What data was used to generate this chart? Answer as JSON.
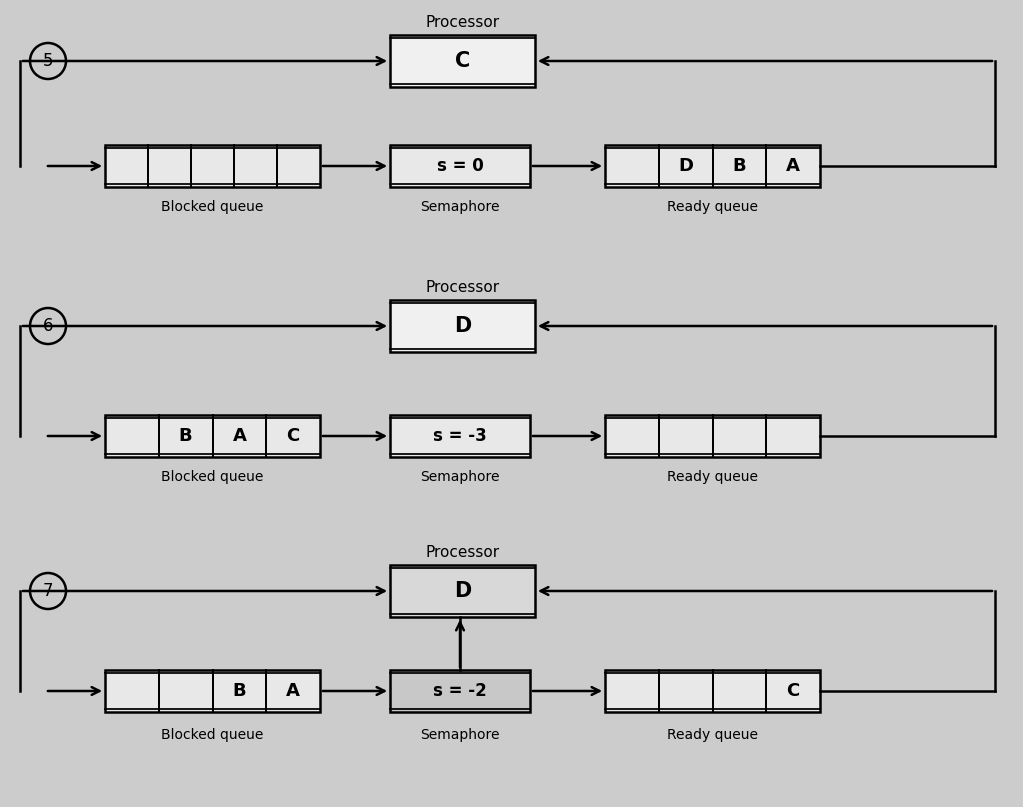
{
  "bg_color": "#cccccc",
  "diagrams": [
    {
      "number": "5",
      "processor_label": "Processor",
      "processor_content": "C",
      "processor_bg": "#f0f0f0",
      "semaphore_value": "s = 0",
      "semaphore_bg": "#e8e8e8",
      "blocked_queue_cells": 5,
      "blocked_items": [],
      "ready_queue_cells": 4,
      "ready_items": [
        "D",
        "B",
        "A"
      ],
      "blocked_label": "Blocked queue",
      "semaphore_label": "Semaphore",
      "ready_label": "Ready queue",
      "has_extra_arrow": false
    },
    {
      "number": "6",
      "processor_label": "Processor",
      "processor_content": "D",
      "processor_bg": "#f0f0f0",
      "semaphore_value": "s = -3",
      "semaphore_bg": "#e8e8e8",
      "blocked_queue_cells": 4,
      "blocked_items": [
        "B",
        "A",
        "C"
      ],
      "ready_queue_cells": 4,
      "ready_items": [],
      "blocked_label": "Blocked queue",
      "semaphore_label": "Semaphore",
      "ready_label": "Ready queue",
      "has_extra_arrow": false
    },
    {
      "number": "7",
      "processor_label": "Processor",
      "processor_content": "D",
      "processor_bg": "#d8d8d8",
      "semaphore_value": "s = -2",
      "semaphore_bg": "#c8c8c8",
      "blocked_queue_cells": 4,
      "blocked_items": [
        "B",
        "A"
      ],
      "ready_queue_cells": 4,
      "ready_items": [
        "C"
      ],
      "blocked_label": "Blocked queue",
      "semaphore_label": "Semaphore",
      "ready_label": "Ready queue",
      "has_extra_arrow": true
    }
  ]
}
